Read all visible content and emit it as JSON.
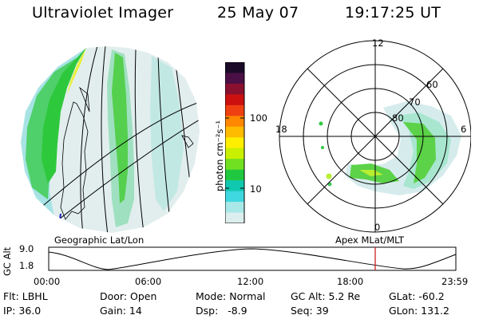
{
  "header": {
    "instrument": "Ultraviolet Imager",
    "date": "25 May 07",
    "time": "19:17:25 UT"
  },
  "left_map": {
    "caption": "Geographic Lat/Lon"
  },
  "right_map": {
    "caption": "Apex MLat/MLT",
    "mlt_labels": {
      "top": "12",
      "left": "18",
      "right": "6",
      "bottom": "0"
    },
    "lat_labels": [
      "60",
      "70",
      "80"
    ]
  },
  "colorbar": {
    "unit_label": "photon cm⁻²s⁻¹",
    "ticks": [
      "100",
      "10"
    ],
    "colors": [
      "#1a0a28",
      "#4a1045",
      "#8a1030",
      "#cc1010",
      "#ee4010",
      "#ff8800",
      "#ffbb00",
      "#ffee00",
      "#c8f000",
      "#70e020",
      "#20c840",
      "#10c8b0",
      "#40d8e0",
      "#a8e8e8",
      "#dceeee"
    ]
  },
  "timeline": {
    "axis_label": "GC Alt",
    "y_max": "9.0",
    "y_min": "1.8",
    "ticks": [
      "00:00",
      "06:00",
      "12:00",
      "18:00",
      "23:59"
    ],
    "cursor_time": "19:17"
  },
  "status": {
    "filt": "Flt: LBHL",
    "ip": "IP: 36.0",
    "door": "Door: Open",
    "gain": "Gain: 14",
    "mode": "Mode: Normal",
    "dsp": "Dsp:   -8.9",
    "gcalt": "GC Alt: 5.2 Re",
    "seq": "Seq: 39",
    "glat": "GLat: -60.2",
    "glon": "GLon: 131.2"
  }
}
